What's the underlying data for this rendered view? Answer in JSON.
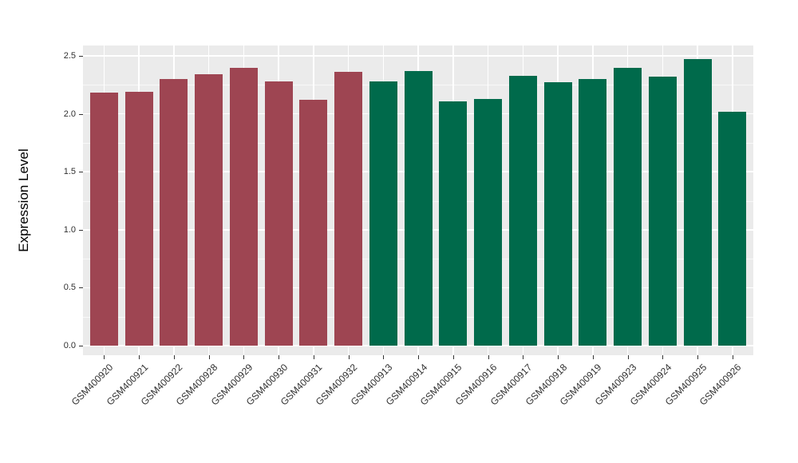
{
  "chart_data": {
    "type": "bar",
    "title": "",
    "xlabel": "",
    "ylabel": "Expression Level",
    "categories": [
      "GSM400920",
      "GSM400921",
      "GSM400922",
      "GSM400928",
      "GSM400929",
      "GSM400930",
      "GSM400931",
      "GSM400932",
      "GSM400913",
      "GSM400914",
      "GSM400915",
      "GSM400916",
      "GSM400917",
      "GSM400918",
      "GSM400919",
      "GSM400923",
      "GSM400924",
      "GSM400925",
      "GSM400926"
    ],
    "values": [
      2.18,
      2.19,
      2.3,
      2.34,
      2.4,
      2.28,
      2.12,
      2.36,
      2.28,
      2.37,
      2.11,
      2.13,
      2.33,
      2.27,
      2.3,
      2.4,
      2.32,
      2.47,
      2.02
    ],
    "bar_groups": [
      "maroon",
      "maroon",
      "maroon",
      "maroon",
      "maroon",
      "maroon",
      "maroon",
      "maroon",
      "green",
      "green",
      "green",
      "green",
      "green",
      "green",
      "green",
      "green",
      "green",
      "green",
      "green"
    ],
    "group_colors": {
      "maroon": "#9E4552",
      "green": "#006A4B"
    },
    "ylim": [
      0,
      2.5
    ],
    "yticks": [
      0.0,
      0.5,
      1.0,
      1.5,
      2.0,
      2.5
    ],
    "ytick_labels": [
      "0.0",
      "0.5",
      "1.0",
      "1.5",
      "2.0",
      "2.5"
    ],
    "grid": true,
    "legend_position": "none",
    "panel_background": "#EBEBEB",
    "gridline_color": "#FFFFFF"
  }
}
